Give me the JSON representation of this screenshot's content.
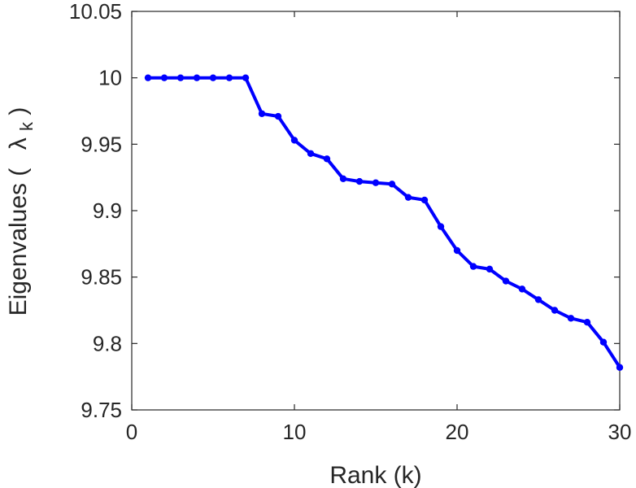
{
  "chart_data": {
    "type": "line",
    "title": "",
    "xlabel": "Rank (k)",
    "ylabel_prefix": "Eigenvalues (",
    "ylabel_symbol": "λ",
    "ylabel_subscript": "k",
    "ylabel_suffix": ")",
    "xlim": [
      0,
      30
    ],
    "ylim": [
      9.75,
      10.05
    ],
    "x_ticks": [
      0,
      10,
      20,
      30
    ],
    "x_tick_labels": [
      "0",
      "10",
      "20",
      "30"
    ],
    "y_ticks": [
      9.75,
      9.8,
      9.85,
      9.9,
      9.95,
      10,
      10.05
    ],
    "y_tick_labels": [
      "9.75",
      "9.8",
      "9.85",
      "9.9",
      "9.95",
      "10",
      "10.05"
    ],
    "grid": false,
    "box": true,
    "series": [
      {
        "color": "#0000ff",
        "marker": "circle",
        "x": [
          1,
          2,
          3,
          4,
          5,
          6,
          7,
          8,
          9,
          10,
          11,
          12,
          13,
          14,
          15,
          16,
          17,
          18,
          19,
          20,
          21,
          22,
          23,
          24,
          25,
          26,
          27,
          28,
          29,
          30
        ],
        "y": [
          10.0,
          10.0,
          10.0,
          10.0,
          10.0,
          10.0,
          10.0,
          9.973,
          9.971,
          9.953,
          9.943,
          9.939,
          9.924,
          9.922,
          9.921,
          9.92,
          9.91,
          9.908,
          9.888,
          9.87,
          9.858,
          9.856,
          9.847,
          9.841,
          9.833,
          9.825,
          9.819,
          9.816,
          9.801,
          9.782
        ]
      }
    ]
  }
}
